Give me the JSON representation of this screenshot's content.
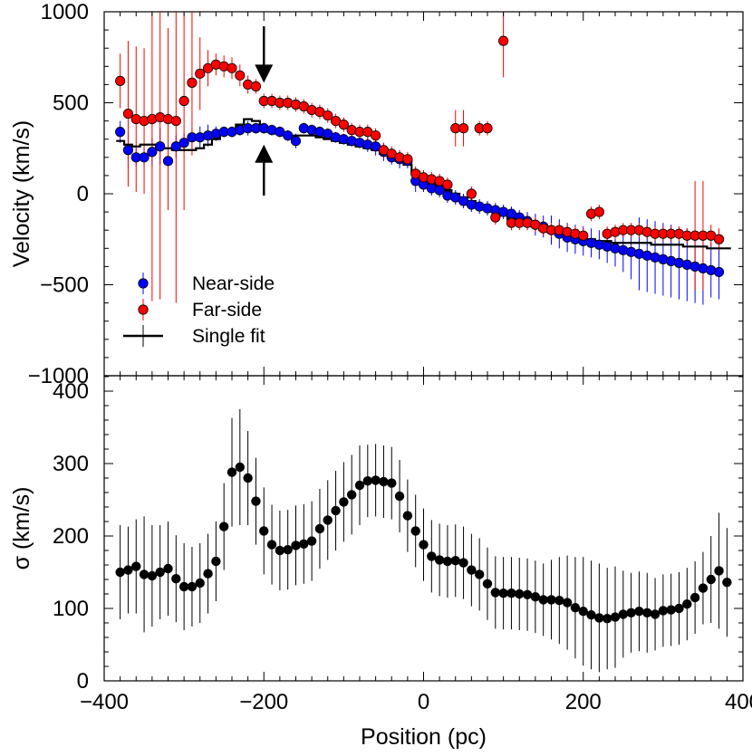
{
  "chart_data": [
    {
      "type": "scatter",
      "panel": "top",
      "xlim": [
        -400,
        400
      ],
      "ylim": [
        -1000,
        1000
      ],
      "ylabel": "Velocity (km/s)",
      "xticks": [
        -400,
        -200,
        0,
        200,
        400
      ],
      "yticks": [
        -1000,
        -500,
        0,
        500,
        1000
      ],
      "ytick_labels": [
        "−1000",
        "−500",
        "0",
        "500",
        "1000"
      ],
      "legend": {
        "placement": "lower-left",
        "entries": [
          {
            "label": "Near-side",
            "color": "#0000ff"
          },
          {
            "label": "Far-side",
            "color": "#ff0000"
          },
          {
            "label": "Single fit",
            "color": "#000000"
          }
        ]
      },
      "annotations": [
        {
          "type": "arrow-down",
          "x": -200,
          "y_tail": 920,
          "y_head": 620
        },
        {
          "type": "arrow-up",
          "x": -200,
          "y_tail": -10,
          "y_head": 260
        }
      ],
      "series": [
        {
          "name": "Near-side",
          "color": "#0000ff",
          "x": [
            -380,
            -370,
            -360,
            -350,
            -340,
            -330,
            -320,
            -310,
            -300,
            -290,
            -280,
            -270,
            -260,
            -250,
            -240,
            -230,
            -220,
            -210,
            -200,
            -190,
            -180,
            -170,
            -160,
            -150,
            -140,
            -130,
            -120,
            -110,
            -100,
            -90,
            -80,
            -70,
            -60,
            -50,
            -40,
            -30,
            -20,
            -10,
            0,
            10,
            20,
            30,
            40,
            50,
            60,
            70,
            80,
            90,
            100,
            110,
            120,
            130,
            140,
            150,
            160,
            170,
            180,
            190,
            200,
            210,
            220,
            230,
            240,
            250,
            260,
            270,
            280,
            290,
            300,
            310,
            320,
            330,
            340,
            350,
            360,
            370
          ],
          "y": [
            340,
            240,
            200,
            200,
            230,
            260,
            180,
            260,
            280,
            310,
            310,
            320,
            330,
            340,
            340,
            350,
            360,
            360,
            360,
            350,
            340,
            320,
            290,
            360,
            350,
            340,
            330,
            310,
            300,
            290,
            280,
            270,
            260,
            230,
            200,
            190,
            180,
            70,
            50,
            30,
            20,
            -10,
            -20,
            -40,
            -60,
            -70,
            -80,
            -90,
            -100,
            -110,
            -130,
            -150,
            -170,
            -180,
            -200,
            -220,
            -240,
            -250,
            -260,
            -270,
            -280,
            -290,
            -300,
            -310,
            -320,
            -330,
            -340,
            -350,
            -360,
            -370,
            -380,
            -390,
            -400,
            -410,
            -420,
            -430
          ],
          "yerr": [
            60,
            100,
            50,
            50,
            80,
            100,
            150,
            60,
            50,
            50,
            60,
            60,
            40,
            30,
            30,
            30,
            40,
            30,
            30,
            30,
            30,
            30,
            40,
            30,
            30,
            30,
            30,
            30,
            30,
            30,
            30,
            40,
            50,
            50,
            40,
            50,
            40,
            60,
            40,
            40,
            40,
            40,
            40,
            40,
            40,
            40,
            40,
            40,
            40,
            40,
            40,
            50,
            60,
            60,
            80,
            80,
            80,
            80,
            80,
            80,
            80,
            90,
            100,
            120,
            150,
            200,
            200,
            200,
            200,
            200,
            200,
            200,
            200,
            200,
            150,
            150
          ]
        },
        {
          "name": "Far-side",
          "color": "#ff0000",
          "x": [
            -380,
            -370,
            -360,
            -350,
            -340,
            -330,
            -320,
            -310,
            -300,
            -290,
            -280,
            -270,
            -260,
            -250,
            -240,
            -230,
            -220,
            -210,
            -200,
            -190,
            -180,
            -170,
            -160,
            -150,
            -140,
            -130,
            -120,
            -110,
            -100,
            -90,
            -80,
            -70,
            -60,
            -50,
            -40,
            -30,
            -20,
            -10,
            0,
            10,
            20,
            30,
            40,
            50,
            60,
            70,
            80,
            90,
            100,
            110,
            120,
            130,
            140,
            150,
            160,
            170,
            180,
            190,
            200,
            210,
            220,
            230,
            240,
            250,
            260,
            270,
            280,
            290,
            300,
            310,
            320,
            330,
            340,
            350,
            360,
            370
          ],
          "y": [
            620,
            440,
            410,
            400,
            410,
            420,
            410,
            400,
            510,
            610,
            660,
            690,
            710,
            700,
            690,
            650,
            600,
            590,
            510,
            510,
            500,
            500,
            490,
            480,
            460,
            450,
            430,
            400,
            380,
            350,
            340,
            340,
            320,
            240,
            220,
            200,
            190,
            110,
            90,
            80,
            70,
            50,
            360,
            360,
            0,
            360,
            360,
            -130,
            840,
            -160,
            -160,
            -160,
            -170,
            -190,
            -200,
            -200,
            -210,
            -220,
            -230,
            -110,
            -100,
            -220,
            -210,
            -200,
            -200,
            -200,
            -210,
            -220,
            -220,
            -220,
            -220,
            -230,
            -230,
            -230,
            -230,
            -250
          ],
          "yerr": [
            150,
            400,
            400,
            400,
            1000,
            1000,
            500,
            1000,
            600,
            400,
            200,
            100,
            60,
            60,
            60,
            60,
            50,
            40,
            40,
            40,
            40,
            40,
            40,
            40,
            40,
            40,
            40,
            40,
            40,
            40,
            40,
            40,
            40,
            40,
            40,
            40,
            40,
            40,
            40,
            40,
            40,
            40,
            100,
            100,
            40,
            40,
            40,
            40,
            200,
            40,
            40,
            40,
            40,
            40,
            40,
            40,
            40,
            40,
            40,
            40,
            40,
            40,
            40,
            40,
            40,
            40,
            40,
            40,
            40,
            40,
            40,
            40,
            300,
            300,
            60,
            60
          ]
        },
        {
          "name": "Single fit",
          "color": "#000000",
          "x": [
            -380,
            -370,
            -360,
            -350,
            -340,
            -330,
            -320,
            -310,
            -300,
            -290,
            -280,
            -270,
            -260,
            -250,
            -240,
            -230,
            -220,
            -210,
            -200,
            -190,
            -180,
            -170,
            -160,
            -150,
            -140,
            -130,
            -120,
            -110,
            -100,
            -90,
            -80,
            -70,
            -60,
            -50,
            -40,
            -30,
            -20,
            -10,
            0,
            10,
            20,
            30,
            40,
            50,
            60,
            70,
            80,
            90,
            100,
            110,
            120,
            130,
            140,
            150,
            160,
            170,
            180,
            190,
            200,
            210,
            220,
            230,
            240,
            250,
            260,
            270,
            280,
            290,
            300,
            310,
            320,
            330,
            340,
            350,
            360,
            370,
            380
          ],
          "y": [
            290,
            270,
            260,
            270,
            270,
            250,
            250,
            240,
            240,
            240,
            250,
            270,
            300,
            330,
            350,
            380,
            410,
            400,
            360,
            340,
            330,
            320,
            320,
            320,
            320,
            310,
            300,
            290,
            280,
            270,
            260,
            250,
            240,
            220,
            200,
            180,
            160,
            120,
            80,
            60,
            40,
            20,
            0,
            -20,
            -40,
            -60,
            -80,
            -100,
            -120,
            -140,
            -160,
            -170,
            -180,
            -200,
            -210,
            -220,
            -230,
            -240,
            -250,
            -250,
            -260,
            -260,
            -270,
            -270,
            -270,
            -270,
            -270,
            -280,
            -280,
            -280,
            -280,
            -290,
            -290,
            -290,
            -300,
            -300,
            -300
          ]
        }
      ]
    },
    {
      "type": "scatter",
      "panel": "bottom",
      "xlim": [
        -400,
        400
      ],
      "ylim": [
        0,
        420
      ],
      "xlabel": "Position (pc)",
      "ylabel": "σ (km/s)",
      "xticks": [
        -400,
        -200,
        0,
        200,
        400
      ],
      "xtick_labels": [
        "−400",
        "−200",
        "0",
        "200",
        "400"
      ],
      "yticks": [
        0,
        100,
        200,
        300,
        400
      ],
      "series": [
        {
          "name": "",
          "color": "#000000",
          "x": [
            -380,
            -370,
            -360,
            -350,
            -340,
            -330,
            -320,
            -310,
            -300,
            -290,
            -280,
            -270,
            -260,
            -250,
            -240,
            -230,
            -220,
            -210,
            -200,
            -190,
            -180,
            -170,
            -160,
            -150,
            -140,
            -130,
            -120,
            -110,
            -100,
            -90,
            -80,
            -70,
            -60,
            -50,
            -40,
            -30,
            -20,
            -10,
            0,
            10,
            20,
            30,
            40,
            50,
            60,
            70,
            80,
            90,
            100,
            110,
            120,
            130,
            140,
            150,
            160,
            170,
            180,
            190,
            200,
            210,
            220,
            230,
            240,
            250,
            260,
            270,
            280,
            290,
            300,
            310,
            320,
            330,
            340,
            350,
            360,
            370,
            380
          ],
          "y": [
            150,
            153,
            158,
            147,
            145,
            150,
            155,
            141,
            130,
            130,
            135,
            148,
            165,
            213,
            288,
            295,
            280,
            248,
            207,
            188,
            180,
            181,
            187,
            189,
            193,
            210,
            222,
            235,
            247,
            257,
            270,
            276,
            277,
            275,
            273,
            255,
            228,
            207,
            188,
            172,
            167,
            165,
            166,
            163,
            153,
            147,
            134,
            122,
            121,
            121,
            120,
            119,
            116,
            112,
            112,
            111,
            108,
            101,
            96,
            91,
            87,
            86,
            88,
            92,
            94,
            96,
            94,
            92,
            97,
            98,
            100,
            106,
            115,
            128,
            140,
            152,
            136
          ],
          "yerr": [
            65,
            60,
            65,
            80,
            70,
            65,
            65,
            60,
            60,
            55,
            55,
            55,
            55,
            60,
            75,
            80,
            65,
            60,
            60,
            55,
            55,
            55,
            55,
            55,
            55,
            55,
            55,
            55,
            55,
            55,
            55,
            50,
            50,
            50,
            50,
            50,
            50,
            50,
            50,
            50,
            50,
            50,
            50,
            50,
            50,
            50,
            50,
            50,
            50,
            50,
            50,
            50,
            50,
            50,
            55,
            60,
            65,
            70,
            75,
            75,
            75,
            70,
            70,
            60,
            55,
            55,
            55,
            50,
            50,
            50,
            50,
            50,
            50,
            50,
            60,
            80,
            75
          ]
        }
      ]
    }
  ]
}
